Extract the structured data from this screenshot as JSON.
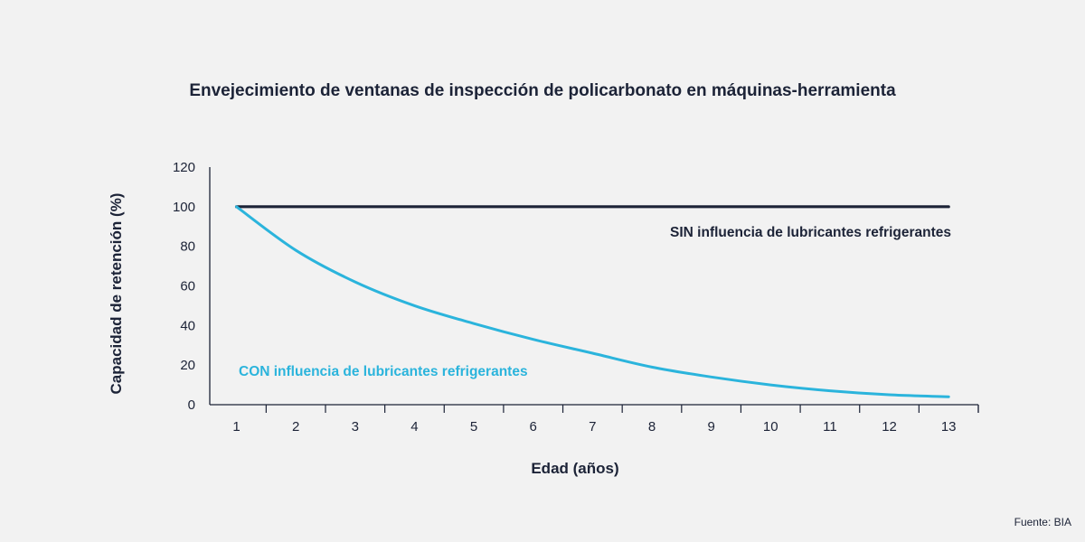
{
  "chart_data": {
    "type": "line",
    "title": "Envejecimiento de ventanas de inspección de policarbonato en máquinas-herramienta",
    "xlabel": "Edad (años)",
    "ylabel": "Capacidad de retención (%)",
    "x": [
      1,
      2,
      3,
      4,
      5,
      6,
      7,
      8,
      9,
      10,
      11,
      12,
      13
    ],
    "xlim": [
      0.55,
      13.5
    ],
    "ylim": [
      0,
      120
    ],
    "y_ticks": [
      0,
      20,
      40,
      60,
      80,
      100,
      120
    ],
    "grid": false,
    "series": [
      {
        "name": "SIN influencia de lubricantes refrigerantes",
        "color": "#1c2337",
        "values": [
          100,
          100,
          100,
          100,
          100,
          100,
          100,
          100,
          100,
          100,
          100,
          100,
          100
        ]
      },
      {
        "name": "CON influencia de lubricantes refrigerantes",
        "color": "#2bb4dc",
        "values": [
          100,
          78,
          62,
          50,
          41,
          33,
          26,
          19,
          14,
          10,
          7,
          5,
          4
        ]
      }
    ],
    "source": "Fuente: BIA"
  }
}
